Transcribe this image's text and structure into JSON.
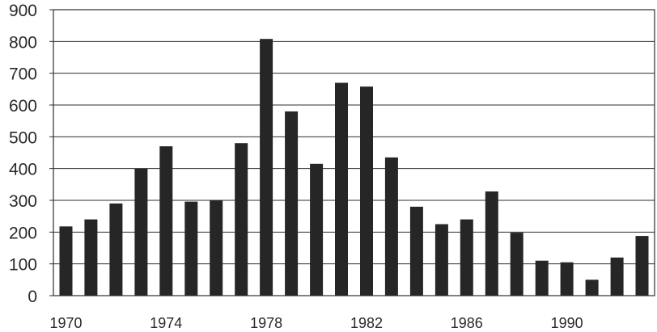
{
  "chart_data": {
    "type": "bar",
    "title": "",
    "xlabel": "",
    "ylabel": "",
    "categories": [
      "1970",
      "1971",
      "1972",
      "1973",
      "1974",
      "1975",
      "1976",
      "1977",
      "1978",
      "1979",
      "1980",
      "1981",
      "1982",
      "1983",
      "1984",
      "1985",
      "1986",
      "1987",
      "1988",
      "1989",
      "1990",
      "1991",
      "1992",
      "1993"
    ],
    "values": [
      218,
      240,
      290,
      400,
      470,
      296,
      300,
      480,
      808,
      580,
      415,
      670,
      658,
      435,
      280,
      225,
      240,
      328,
      198,
      110,
      105,
      50,
      120,
      188
    ],
    "x_tick_labels": [
      "1970",
      "1974",
      "1978",
      "1982",
      "1986",
      "1990"
    ],
    "y_ticks": [
      0,
      100,
      200,
      300,
      400,
      500,
      600,
      700,
      800,
      900
    ],
    "ylim": [
      0,
      900
    ],
    "grid": true,
    "bar_color": "#262626"
  }
}
